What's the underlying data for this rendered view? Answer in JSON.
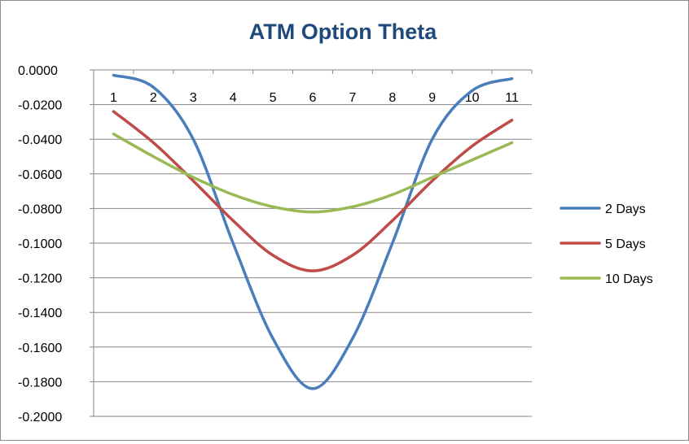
{
  "chart_data": {
    "type": "line",
    "title": "ATM Option Theta",
    "xlabel": "",
    "ylabel": "",
    "categories": [
      "1",
      "2",
      "3",
      "4",
      "5",
      "6",
      "7",
      "8",
      "9",
      "10",
      "11"
    ],
    "x": [
      1,
      2,
      3,
      4,
      5,
      6,
      7,
      8,
      9,
      10,
      11
    ],
    "ylim": [
      -0.2,
      0.0
    ],
    "y_ticks": [
      0.0,
      -0.02,
      -0.04,
      -0.06,
      -0.08,
      -0.1,
      -0.12,
      -0.14,
      -0.16,
      -0.18,
      -0.2
    ],
    "y_tick_labels": [
      "0.0000",
      "-0.0200",
      "-0.0400",
      "-0.0600",
      "-0.0800",
      "-0.1000",
      "-0.1200",
      "-0.1400",
      "-0.1600",
      "-0.1800",
      "-0.2000"
    ],
    "x_axis_position": "top",
    "grid": true,
    "smooth": true,
    "legend_position": "right",
    "series": [
      {
        "name": "2 Days",
        "color": "#4a7ebb",
        "values": [
          -0.003,
          -0.01,
          -0.04,
          -0.1,
          -0.155,
          -0.184,
          -0.155,
          -0.1,
          -0.04,
          -0.012,
          -0.005
        ]
      },
      {
        "name": "5 Days",
        "color": "#be4b48",
        "values": [
          -0.024,
          -0.042,
          -0.064,
          -0.087,
          -0.107,
          -0.116,
          -0.107,
          -0.087,
          -0.064,
          -0.044,
          -0.029
        ]
      },
      {
        "name": "10 Days",
        "color": "#98b954",
        "values": [
          -0.037,
          -0.05,
          -0.062,
          -0.072,
          -0.079,
          -0.082,
          -0.079,
          -0.072,
          -0.062,
          -0.052,
          -0.042
        ]
      }
    ]
  }
}
